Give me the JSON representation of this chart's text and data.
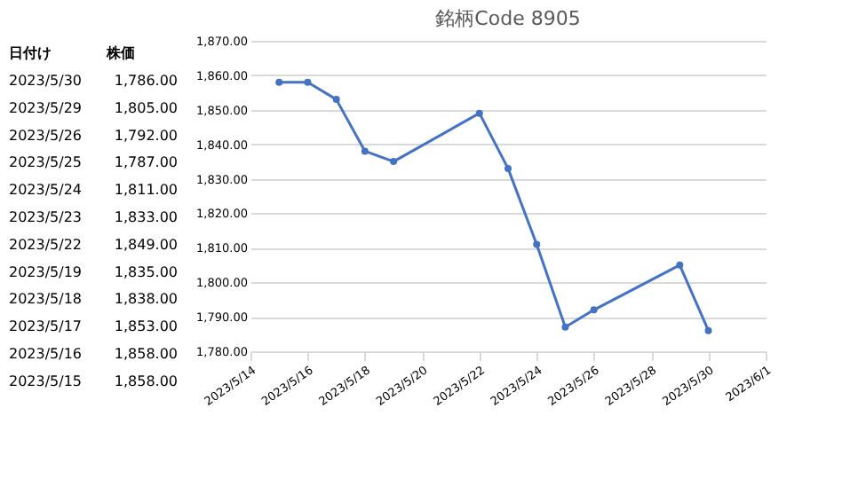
{
  "chart_data": {
    "type": "line",
    "title": "銘柄Code 8905",
    "annotations": [
      "日付け",
      "株価",
      "2023/5/30",
      "1,786.00",
      "2023/5/29",
      "1,805.00",
      "2023/5/26",
      "1,792.00",
      "2023/5/25",
      "1,787.00",
      "2023/5/24",
      "1,811.00",
      "2023/5/23",
      "1,833.00",
      "2023/5/22",
      "1,849.00",
      "2023/5/19",
      "1,835.00",
      "2023/5/18",
      "1,838.00",
      "2023/5/17",
      "1,853.00",
      "2023/5/16",
      "1,858.00",
      "2023/5/15",
      "1,858.00"
    ],
    "x": [
      "2023-05-15",
      "2023-05-16",
      "2023-05-17",
      "2023-05-18",
      "2023-05-19",
      "2023-05-22",
      "2023-05-23",
      "2023-05-24",
      "2023-05-25",
      "2023-05-26",
      "2023-05-29",
      "2023-05-30"
    ],
    "series": [
      {
        "color": "#4472c4",
        "values": [
          1858,
          1858,
          1853,
          1838,
          1835,
          1849,
          1833,
          1811,
          1787,
          1792,
          1805,
          1786
        ]
      }
    ],
    "xlim": [
      "2023-05-14",
      "2023-06-01"
    ],
    "xticks": [
      {
        "value": "2023-05-14",
        "label": "2023/5/14"
      },
      {
        "value": "2023-05-16",
        "label": "2023/5/16"
      },
      {
        "value": "2023-05-18",
        "label": "2023/5/18"
      },
      {
        "value": "2023-05-20",
        "label": "2023/5/20"
      },
      {
        "value": "2023-05-22",
        "label": "2023/5/22"
      },
      {
        "value": "2023-05-24",
        "label": "2023/5/24"
      },
      {
        "value": "2023-05-26",
        "label": "2023/5/26"
      },
      {
        "value": "2023-05-28",
        "label": "2023/5/28"
      },
      {
        "value": "2023-05-30",
        "label": "2023/5/30"
      },
      {
        "value": "2023-06-01",
        "label": "2023/6/1"
      }
    ],
    "ylim": [
      1780,
      1870
    ],
    "yticks": [
      {
        "value": 1780,
        "label": "1,780.00"
      },
      {
        "value": 1790,
        "label": "1,790.00"
      },
      {
        "value": 1800,
        "label": "1,800.00"
      },
      {
        "value": 1810,
        "label": "1,810.00"
      },
      {
        "value": 1820,
        "label": "1,820.00"
      },
      {
        "value": 1830,
        "label": "1,830.00"
      },
      {
        "value": 1840,
        "label": "1,840.00"
      },
      {
        "value": 1850,
        "label": "1,850.00"
      },
      {
        "value": 1860,
        "label": "1,860.00"
      },
      {
        "value": 1870,
        "label": "1,870.00"
      }
    ],
    "grid": "y",
    "marker": "circle",
    "line_style": "solid"
  }
}
